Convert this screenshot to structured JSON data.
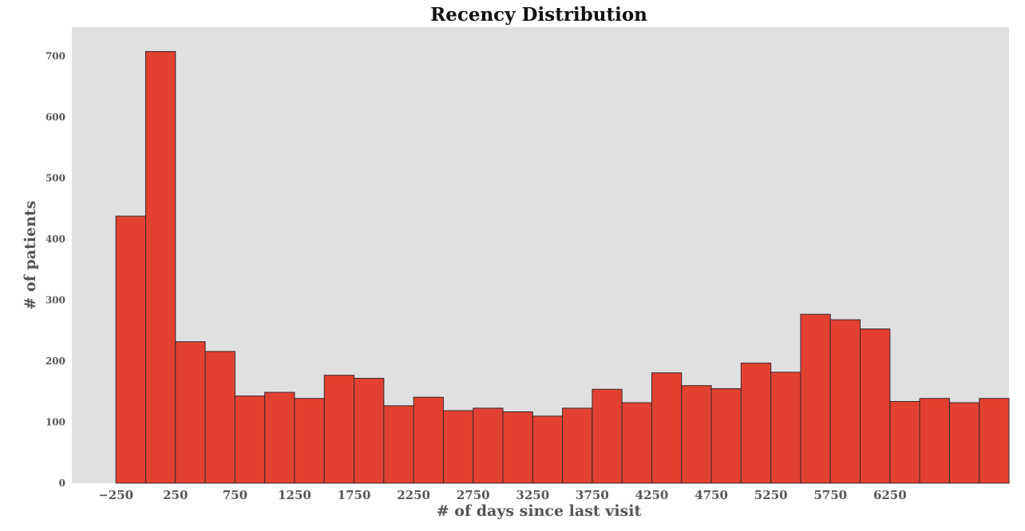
{
  "chart_data": {
    "type": "bar",
    "title": "Recency Distribution",
    "xlabel": "# of days since last visit",
    "ylabel": "# of patients",
    "colors": {
      "bar": "#e24030",
      "edge": "#3a2a2a",
      "plot_bg": "#e0e0e0"
    },
    "grid": false,
    "bin_width": 250,
    "bin_starts": [
      -250,
      0,
      250,
      500,
      750,
      1000,
      1250,
      1500,
      1750,
      2000,
      2250,
      2500,
      2750,
      3000,
      3250,
      3500,
      3750,
      4000,
      4250,
      4500,
      4750,
      5000,
      5250,
      5500,
      5750,
      6000,
      6250,
      6500,
      6750,
      7000
    ],
    "values": [
      438,
      708,
      232,
      216,
      143,
      149,
      139,
      177,
      172,
      127,
      141,
      119,
      123,
      117,
      110,
      123,
      154,
      132,
      181,
      160,
      155,
      197,
      182,
      277,
      268,
      253,
      134,
      139,
      132,
      139
    ],
    "xlim": [
      -620,
      7250
    ],
    "ylim": [
      0,
      748
    ],
    "x_ticks": [
      -250,
      250,
      750,
      1250,
      1750,
      2250,
      2750,
      3250,
      3750,
      4250,
      4750,
      5250,
      5750,
      6250
    ],
    "x_tick_labels": [
      "−250",
      "250",
      "750",
      "1250",
      "1750",
      "2250",
      "2750",
      "3250",
      "3750",
      "4250",
      "4750",
      "5250",
      "5750",
      "6250"
    ],
    "y_ticks": [
      0,
      100,
      200,
      300,
      400,
      500,
      600,
      700
    ],
    "y_tick_labels": [
      "0",
      "100",
      "200",
      "300",
      "400",
      "500",
      "600",
      "700"
    ]
  }
}
